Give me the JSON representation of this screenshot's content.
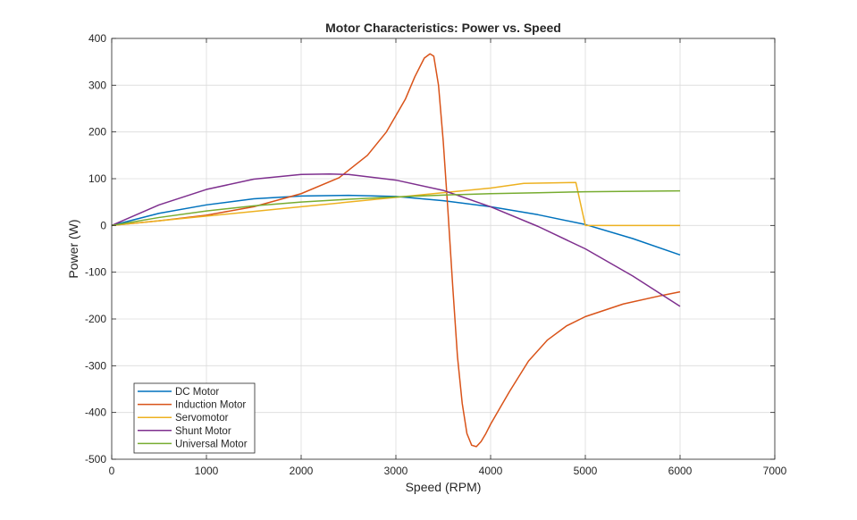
{
  "chart_data": {
    "type": "line",
    "title": "Motor Characteristics: Power vs. Speed",
    "xlabel": "Speed (RPM)",
    "ylabel": "Power (W)",
    "xlim": [
      0,
      7000
    ],
    "ylim": [
      -500,
      400
    ],
    "xticks": [
      0,
      1000,
      2000,
      3000,
      4000,
      5000,
      6000,
      7000
    ],
    "yticks": [
      -500,
      -400,
      -300,
      -200,
      -100,
      0,
      100,
      200,
      300,
      400
    ],
    "xtick_labels": [
      "0",
      "1000",
      "2000",
      "3000",
      "4000",
      "5000",
      "6000",
      "7000"
    ],
    "ytick_labels": [
      "-500",
      "-400",
      "-300",
      "-200",
      "-100",
      "0",
      "100",
      "200",
      "300",
      "400"
    ],
    "grid": true,
    "legend_position": "bottom-left",
    "series": [
      {
        "name": "DC Motor",
        "color": "#0072BD",
        "x": [
          0,
          500,
          1000,
          1500,
          2000,
          2500,
          3000,
          3500,
          4000,
          4500,
          5000,
          5500,
          6000
        ],
        "y": [
          0,
          26,
          44,
          57,
          63,
          64.5,
          62,
          53,
          40,
          23,
          2,
          -28,
          -63
        ]
      },
      {
        "name": "Induction Motor",
        "color": "#D95319",
        "x": [
          0,
          500,
          1000,
          1500,
          2000,
          2400,
          2700,
          2900,
          3100,
          3200,
          3300,
          3360,
          3400,
          3450,
          3500,
          3550,
          3600,
          3650,
          3700,
          3750,
          3800,
          3850,
          3900,
          3950,
          4000,
          4100,
          4200,
          4400,
          4600,
          4800,
          5000,
          5400,
          5800,
          6000
        ],
        "y": [
          0,
          10,
          22,
          40,
          68,
          102,
          150,
          200,
          270,
          318,
          358,
          367,
          362,
          300,
          180,
          30,
          -130,
          -280,
          -380,
          -445,
          -470,
          -473,
          -462,
          -445,
          -425,
          -390,
          -355,
          -290,
          -245,
          -215,
          -195,
          -168,
          -150,
          -142
        ]
      },
      {
        "name": "Servomotor",
        "color": "#EDB120",
        "x": [
          0,
          1000,
          2000,
          3000,
          4000,
          4350,
          4900,
          5000,
          5500,
          6000
        ],
        "y": [
          0,
          20,
          40,
          60,
          80,
          90,
          92,
          0,
          0,
          0
        ]
      },
      {
        "name": "Shunt Motor",
        "color": "#7E2F8E",
        "x": [
          0,
          500,
          1000,
          1500,
          2000,
          2300,
          2500,
          3000,
          3500,
          4000,
          4500,
          5000,
          5500,
          6000
        ],
        "y": [
          0,
          44,
          77,
          99,
          109,
          110,
          109,
          97,
          75,
          40,
          -2,
          -50,
          -108,
          -173
        ]
      },
      {
        "name": "Universal Motor",
        "color": "#77AC30",
        "x": [
          0,
          500,
          1000,
          1500,
          2000,
          2500,
          3000,
          3500,
          4000,
          4500,
          5000,
          5500,
          6000
        ],
        "y": [
          0,
          17,
          31,
          42,
          50,
          56,
          61,
          65,
          68,
          70,
          72,
          73,
          74
        ]
      }
    ]
  }
}
